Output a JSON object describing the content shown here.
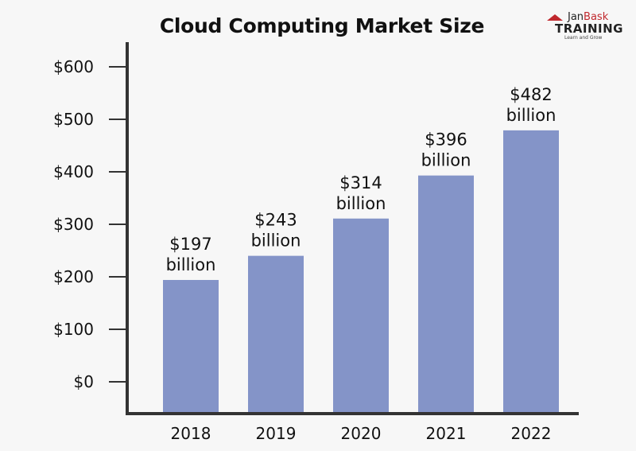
{
  "chart_data": {
    "type": "bar",
    "title": "Cloud Computing Market Size",
    "categories": [
      "2018",
      "2019",
      "2020",
      "2021",
      "2022"
    ],
    "values": [
      197,
      243,
      314,
      396,
      482
    ],
    "data_labels": [
      [
        "$197",
        "billion"
      ],
      [
        "$243",
        "billion"
      ],
      [
        "$314",
        "billion"
      ],
      [
        "$396",
        "billion"
      ],
      [
        "$482",
        "billion"
      ]
    ],
    "yticks": [
      0,
      100,
      200,
      300,
      400,
      500,
      600
    ],
    "ytick_labels": [
      "$0",
      "$100",
      "$200",
      "$300",
      "$400",
      "$500",
      "$600"
    ],
    "ylim": [
      0,
      600
    ],
    "xlabel": "",
    "ylabel": "",
    "grid": false,
    "bar_color": "#8494c8"
  },
  "logo": {
    "brand_a": "Jan",
    "brand_b": "Bask",
    "name": "TRAINING",
    "tagline": "Learn and Grow"
  }
}
